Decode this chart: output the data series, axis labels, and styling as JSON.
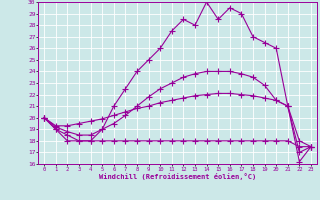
{
  "xlabel": "Windchill (Refroidissement éolien,°C)",
  "bg_color": "#cce8e8",
  "line_color": "#990099",
  "grid_color": "#ffffff",
  "xlim": [
    -0.5,
    23.5
  ],
  "ylim": [
    16,
    30
  ],
  "yticks": [
    16,
    17,
    18,
    19,
    20,
    21,
    22,
    23,
    24,
    25,
    26,
    27,
    28,
    29,
    30
  ],
  "xticks": [
    0,
    1,
    2,
    3,
    4,
    5,
    6,
    7,
    8,
    9,
    10,
    11,
    12,
    13,
    14,
    15,
    16,
    17,
    18,
    19,
    20,
    21,
    22,
    23
  ],
  "series1_x": [
    0,
    1,
    2,
    3,
    4,
    5,
    6,
    7,
    8,
    9,
    10,
    11,
    12,
    13,
    14,
    15,
    16,
    17,
    18,
    19,
    20,
    21,
    22,
    23
  ],
  "series1_y": [
    20.0,
    19.0,
    18.5,
    18.0,
    18.0,
    19.0,
    21.0,
    22.5,
    24.0,
    25.0,
    26.0,
    27.5,
    28.5,
    28.0,
    30.0,
    28.5,
    29.5,
    29.0,
    27.0,
    26.5,
    26.0,
    21.0,
    16.2,
    17.5
  ],
  "series2_x": [
    0,
    1,
    2,
    3,
    4,
    5,
    6,
    7,
    8,
    9,
    10,
    11,
    12,
    13,
    14,
    15,
    16,
    17,
    18,
    19,
    20,
    21,
    22,
    23
  ],
  "series2_y": [
    20.0,
    19.2,
    18.8,
    18.5,
    18.5,
    19.0,
    19.5,
    20.2,
    21.0,
    21.8,
    22.5,
    23.0,
    23.5,
    23.8,
    24.0,
    24.0,
    24.0,
    23.8,
    23.5,
    22.8,
    21.5,
    21.0,
    17.0,
    17.5
  ],
  "series3_x": [
    0,
    1,
    2,
    3,
    4,
    5,
    6,
    7,
    8,
    9,
    10,
    11,
    12,
    13,
    14,
    15,
    16,
    17,
    18,
    19,
    20,
    21,
    22,
    23
  ],
  "series3_y": [
    20.0,
    19.3,
    19.3,
    19.5,
    19.7,
    19.9,
    20.2,
    20.5,
    20.8,
    21.0,
    21.3,
    21.5,
    21.7,
    21.9,
    22.0,
    22.1,
    22.1,
    22.0,
    21.9,
    21.7,
    21.5,
    21.0,
    18.0,
    17.5
  ],
  "series4_x": [
    0,
    1,
    2,
    3,
    4,
    5,
    6,
    7,
    8,
    9,
    10,
    11,
    12,
    13,
    14,
    15,
    16,
    17,
    18,
    19,
    20,
    21,
    22,
    23
  ],
  "series4_y": [
    20.0,
    19.0,
    18.0,
    18.0,
    18.0,
    18.0,
    18.0,
    18.0,
    18.0,
    18.0,
    18.0,
    18.0,
    18.0,
    18.0,
    18.0,
    18.0,
    18.0,
    18.0,
    18.0,
    18.0,
    18.0,
    18.0,
    17.5,
    17.5
  ]
}
